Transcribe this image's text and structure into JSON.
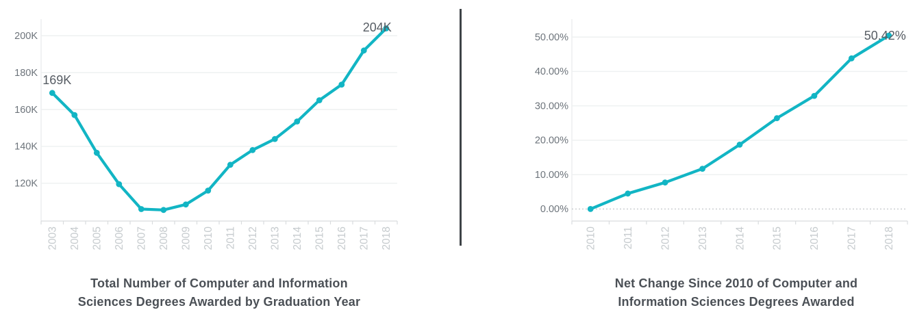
{
  "chart_data": [
    {
      "type": "line",
      "title": "Total Number of Computer and Information Sciences Degrees Awarded by Graduation Year",
      "title_lines": [
        "Total Number of Computer and Information",
        "Sciences Degrees Awarded by Graduation Year"
      ],
      "categories": [
        "2003",
        "2004",
        "2005",
        "2006",
        "2007",
        "2008",
        "2009",
        "2010",
        "2011",
        "2012",
        "2013",
        "2014",
        "2015",
        "2016",
        "2017",
        "2018"
      ],
      "values": [
        169,
        157,
        136.5,
        119.5,
        106,
        105.5,
        108.5,
        116,
        130,
        138,
        144,
        153.5,
        165,
        173.5,
        192,
        204
      ],
      "value_unit": "thousands of degrees",
      "ylim": [
        99.5,
        209
      ],
      "yticks": [
        {
          "v": 120,
          "label": "120K"
        },
        {
          "v": 140,
          "label": "140K"
        },
        {
          "v": 160,
          "label": "160K"
        },
        {
          "v": 180,
          "label": "180K"
        },
        {
          "v": 200,
          "label": "200K"
        }
      ],
      "point_labels": {
        "first": "169K",
        "last": "204K"
      },
      "x_label_rotation": -90,
      "grid": "horizontal",
      "legend": "none"
    },
    {
      "type": "line",
      "title": "Net Change Since 2010 of Computer and Information Sciences Degrees Awarded",
      "title_lines": [
        "Net Change Since 2010 of Computer and",
        "Information Sciences Degrees Awarded"
      ],
      "categories": [
        "2010",
        "2011",
        "2012",
        "2013",
        "2014",
        "2015",
        "2016",
        "2017",
        "2018"
      ],
      "values": [
        0,
        4.5,
        7.7,
        11.7,
        18.7,
        26.4,
        32.9,
        43.8,
        50.42
      ],
      "value_unit": "percent net change since 2010",
      "ylim": [
        -3.5,
        55.2
      ],
      "yticks": [
        {
          "v": 0,
          "label": "0.00%",
          "dashed": true
        },
        {
          "v": 10,
          "label": "10.00%"
        },
        {
          "v": 20,
          "label": "20.00%"
        },
        {
          "v": 30,
          "label": "30.00%"
        },
        {
          "v": 40,
          "label": "40.00%"
        },
        {
          "v": 50,
          "label": "50.00%"
        }
      ],
      "point_labels": {
        "last": "50.42%"
      },
      "x_label_rotation": -90,
      "grid": "horizontal",
      "legend": "none"
    }
  ],
  "colors": {
    "line": "#12b5c4",
    "grid": "#eef0f1",
    "axis": "#d9dcde",
    "zero_dash": "#b6bbbe",
    "ytick_text": "#6d747b",
    "xtick_text": "#c6cbce",
    "point_label_text": "#565c63",
    "title_text": "#4b5056",
    "divider": "#3e4347",
    "background": "#ffffff"
  }
}
